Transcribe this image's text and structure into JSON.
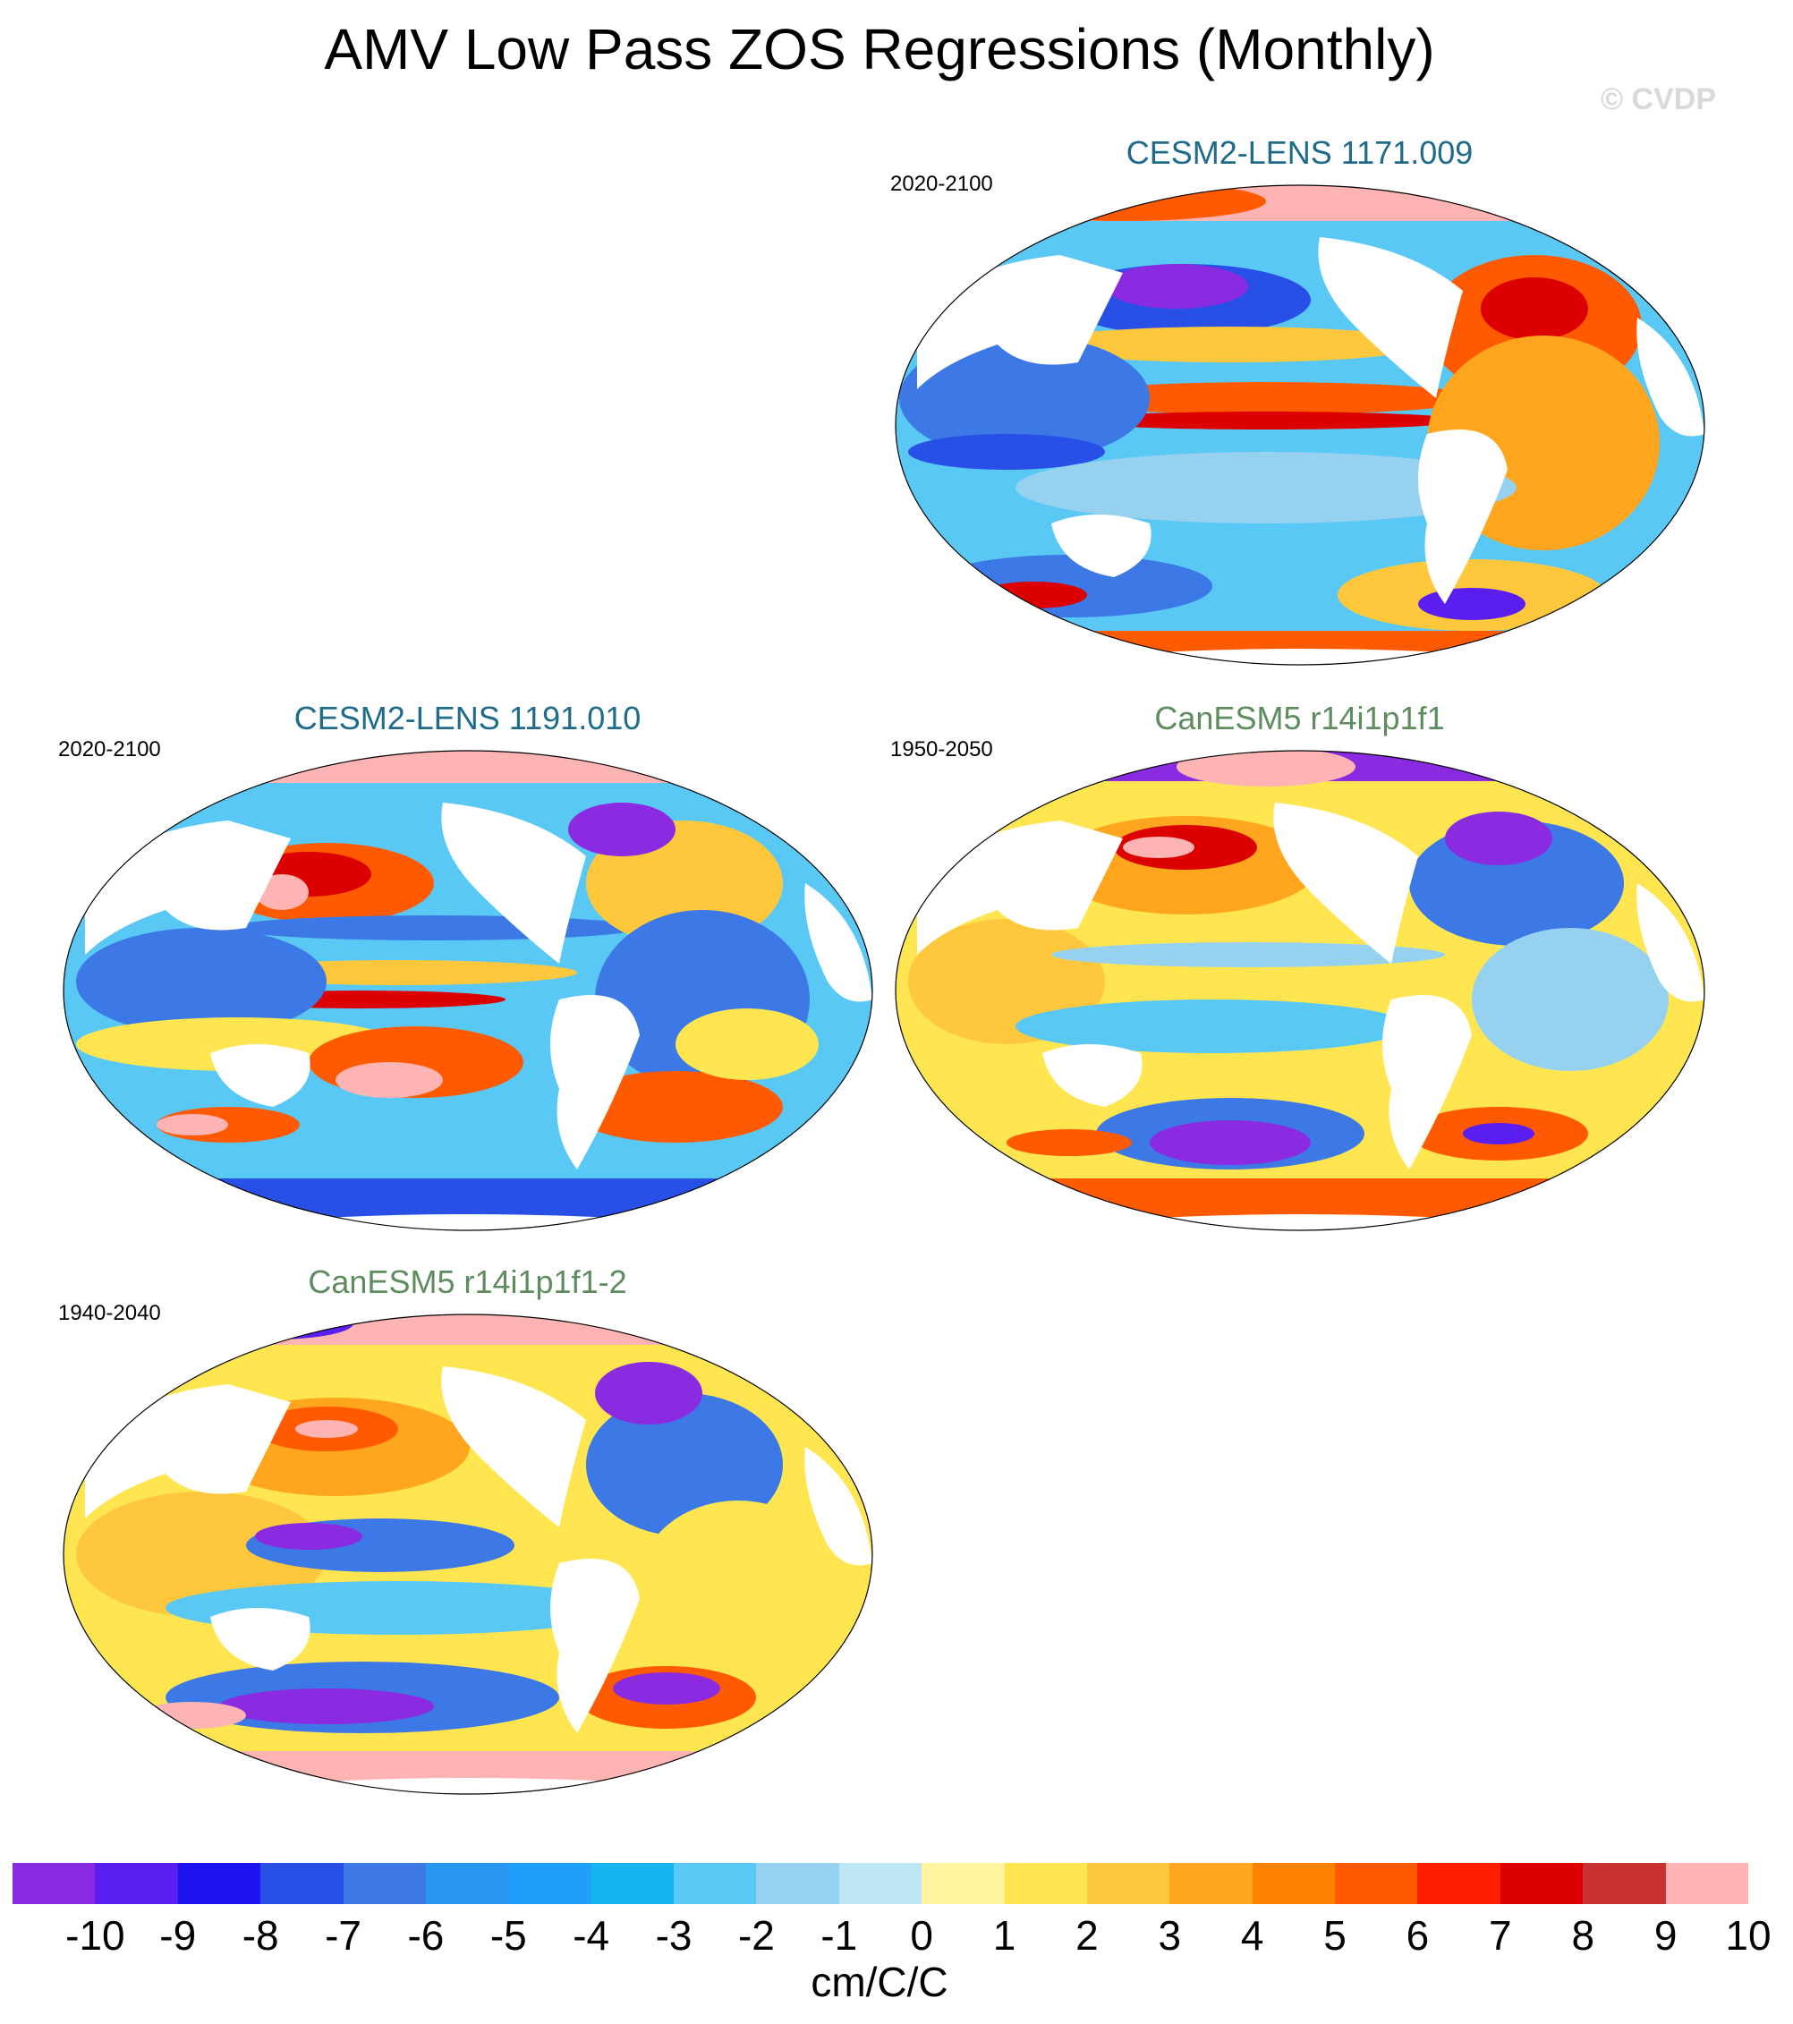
{
  "title": "AMV Low Pass ZOS Regressions (Monthly)",
  "copyright": "© CVDP",
  "panels": [
    {
      "title": "CESM2-LENS 1171.009",
      "period": "2020-2100",
      "title_color": "#1e6b8a",
      "position": "top-right"
    },
    {
      "title": "CESM2-LENS 1191.010",
      "period": "2020-2100",
      "title_color": "#1e6b8a",
      "position": "middle-left"
    },
    {
      "title": "CanESM5 r14i1p1f1",
      "period": "1950-2050",
      "title_color": "#5e8c5e",
      "position": "middle-right"
    },
    {
      "title": "CanESM5 r14i1p1f1-2",
      "period": "1940-2040",
      "title_color": "#5e8c5e",
      "position": "bottom-left"
    }
  ],
  "colorbar": {
    "labels": [
      "-10",
      "-9",
      "-8",
      "-7",
      "-6",
      "-5",
      "-4",
      "-3",
      "-2",
      "-1",
      "0",
      "1",
      "2",
      "3",
      "4",
      "5",
      "6",
      "7",
      "8",
      "9",
      "10"
    ],
    "colors": [
      "#8a2be2",
      "#5a1ef0",
      "#1e14f0",
      "#2850e6",
      "#3c78e6",
      "#2896f0",
      "#1ea0fa",
      "#14b4f0",
      "#5ac8f5",
      "#96d2f0",
      "#bee6f5",
      "#fff5a0",
      "#ffe650",
      "#ffc83c",
      "#ffa51e",
      "#ff8200",
      "#ff5a00",
      "#ff1e00",
      "#dc0000",
      "#c83232",
      "#ffb4b4"
    ],
    "units": "cm/C/C"
  }
}
